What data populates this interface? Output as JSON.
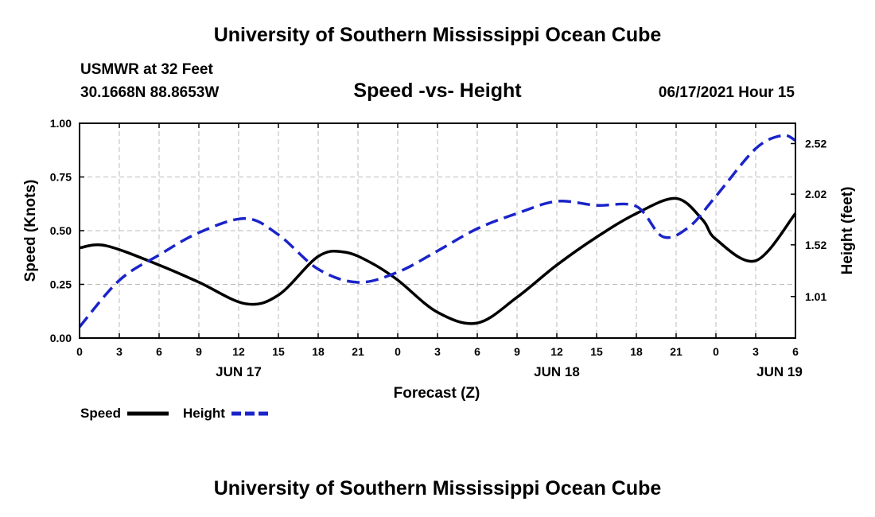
{
  "header": {
    "title": "University of Southern Mississippi Ocean Cube",
    "station": "USMWR at 32 Feet",
    "coordinates": "30.1668N  88.8653W",
    "subtitle": "Speed -vs- Height",
    "datetime": "06/17/2021 Hour 15"
  },
  "footer": {
    "title": "University of Southern Mississippi Ocean Cube"
  },
  "chart_data": {
    "type": "line",
    "title": "Speed -vs- Height",
    "xlabel": "Forecast (Z)",
    "ylabel": "Speed (Knots)",
    "y2label": "Height (feet)",
    "x_unit": "hours from JUN 17 00Z",
    "xlim": [
      0,
      54
    ],
    "ylim": [
      0,
      1
    ],
    "y2lim": [
      0.6,
      2.72
    ],
    "grid": true,
    "x_ticks": [
      {
        "x": 0,
        "label": "0"
      },
      {
        "x": 3,
        "label": "3"
      },
      {
        "x": 6,
        "label": "6"
      },
      {
        "x": 9,
        "label": "9"
      },
      {
        "x": 12,
        "label": "12"
      },
      {
        "x": 15,
        "label": "15"
      },
      {
        "x": 18,
        "label": "18"
      },
      {
        "x": 21,
        "label": "21"
      },
      {
        "x": 24,
        "label": "0"
      },
      {
        "x": 27,
        "label": "3"
      },
      {
        "x": 30,
        "label": "6"
      },
      {
        "x": 33,
        "label": "9"
      },
      {
        "x": 36,
        "label": "12"
      },
      {
        "x": 39,
        "label": "15"
      },
      {
        "x": 42,
        "label": "18"
      },
      {
        "x": 45,
        "label": "21"
      },
      {
        "x": 48,
        "label": "0"
      },
      {
        "x": 51,
        "label": "3"
      },
      {
        "x": 54,
        "label": "6"
      }
    ],
    "date_labels": [
      {
        "x": 12,
        "label": "JUN 17"
      },
      {
        "x": 36,
        "label": "JUN 18"
      },
      {
        "x": 52.8,
        "label": "JUN 19"
      }
    ],
    "y_ticks": [
      {
        "y": 0,
        "label": "0.00"
      },
      {
        "y": 0.25,
        "label": "0.25"
      },
      {
        "y": 0.5,
        "label": "0.50"
      },
      {
        "y": 0.75,
        "label": "0.75"
      },
      {
        "y": 1,
        "label": "1.00"
      }
    ],
    "y2_ticks": [
      {
        "y": 1.01,
        "label": "1.01"
      },
      {
        "y": 1.52,
        "label": "1.52"
      },
      {
        "y": 2.02,
        "label": "2.02"
      },
      {
        "y": 2.52,
        "label": "2.52"
      }
    ],
    "series": [
      {
        "name": "Speed",
        "axis": "left",
        "color": "#000000",
        "style": "solid",
        "x": [
          0,
          2,
          6,
          9,
          12.5,
          15,
          18,
          20,
          22,
          24,
          27,
          30,
          33,
          36,
          39,
          42,
          45,
          47,
          48,
          51,
          54
        ],
        "values": [
          0.42,
          0.43,
          0.34,
          0.26,
          0.16,
          0.2,
          0.38,
          0.4,
          0.35,
          0.27,
          0.12,
          0.07,
          0.19,
          0.34,
          0.47,
          0.58,
          0.65,
          0.55,
          0.46,
          0.36,
          0.58
        ]
      },
      {
        "name": "Height",
        "axis": "right",
        "color": "#1a24c8",
        "style": "dashed",
        "x": [
          0,
          3,
          6,
          9,
          12.5,
          15,
          18,
          21,
          24,
          27,
          30,
          33,
          36,
          39,
          42,
          44,
          46,
          48,
          51,
          53,
          54
        ],
        "values": [
          0.71,
          1.17,
          1.42,
          1.64,
          1.78,
          1.62,
          1.28,
          1.15,
          1.25,
          1.46,
          1.68,
          1.83,
          1.95,
          1.91,
          1.9,
          1.6,
          1.7,
          2.0,
          2.47,
          2.6,
          2.55
        ]
      }
    ]
  }
}
